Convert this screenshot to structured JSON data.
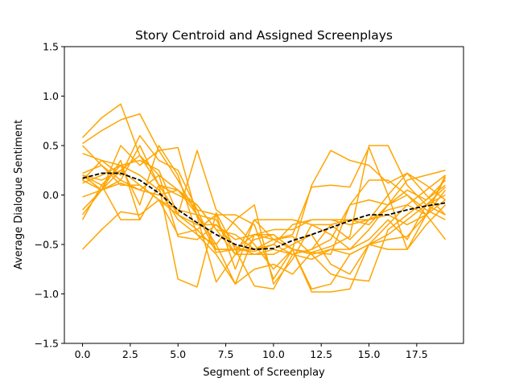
{
  "chart_data": {
    "type": "line",
    "title": "Story Centroid and Assigned Screenplays",
    "xlabel": "Segment of Screenplay",
    "ylabel": "Average Dialogue Sentiment",
    "xlim": [
      -0.95,
      19.95
    ],
    "ylim": [
      -1.5,
      1.5
    ],
    "xticks": [
      0.0,
      2.5,
      5.0,
      7.5,
      10.0,
      12.5,
      15.0,
      17.5
    ],
    "xtick_labels": [
      "0.0",
      "2.5",
      "5.0",
      "7.5",
      "10.0",
      "12.5",
      "15.0",
      "17.5"
    ],
    "yticks": [
      -1.5,
      -1.0,
      -0.5,
      0.0,
      0.5,
      1.0,
      1.5
    ],
    "ytick_labels": [
      "−1.5",
      "−1.0",
      "−0.5",
      "0.0",
      "0.5",
      "1.0",
      "1.5"
    ],
    "grid": false,
    "legend": "none",
    "x": [
      0,
      1,
      2,
      3,
      4,
      5,
      6,
      7,
      8,
      9,
      10,
      11,
      12,
      13,
      14,
      15,
      16,
      17,
      18,
      19
    ],
    "series_color": "#ffa500",
    "centroid_color": "#000000",
    "series": [
      {
        "values": [
          0.58,
          0.78,
          0.92,
          0.4,
          0.2,
          0.05,
          -0.1,
          -0.35,
          -0.6,
          -0.45,
          -0.4,
          -0.55,
          -0.95,
          -0.9,
          -0.6,
          -0.5,
          -0.3,
          -0.1,
          0.05,
          0.2
        ]
      },
      {
        "values": [
          0.52,
          0.65,
          0.76,
          0.82,
          0.45,
          0.15,
          -0.2,
          -0.5,
          -0.9,
          -0.75,
          -0.7,
          -0.8,
          -0.58,
          -0.52,
          -0.42,
          0.5,
          0.5,
          0.1,
          -0.1,
          -0.2
        ]
      },
      {
        "values": [
          0.42,
          0.35,
          0.2,
          0.6,
          0.35,
          0.25,
          -0.15,
          -0.55,
          -0.55,
          -0.4,
          -0.4,
          -0.55,
          -0.6,
          -0.8,
          -0.85,
          -0.87,
          -0.35,
          -0.2,
          -0.05,
          0.1
        ]
      },
      {
        "values": [
          0.2,
          0.05,
          0.5,
          0.3,
          0.45,
          0.48,
          -0.22,
          -0.88,
          -0.6,
          -0.6,
          -0.55,
          -0.6,
          -0.55,
          -0.45,
          -0.1,
          0.15,
          0.15,
          0.0,
          -0.2,
          0.05
        ]
      },
      {
        "values": [
          0.2,
          0.15,
          0.25,
          0.4,
          0.1,
          -0.2,
          0.45,
          -0.15,
          -0.3,
          -0.5,
          -0.75,
          -0.55,
          0.1,
          0.45,
          0.35,
          0.3,
          0.12,
          0.22,
          0.0,
          -0.2
        ]
      },
      {
        "values": [
          0.15,
          0.35,
          0.3,
          -0.1,
          0.5,
          0.2,
          -0.4,
          -0.5,
          -0.25,
          -0.1,
          -0.9,
          -0.65,
          -0.3,
          -0.3,
          -0.45,
          -0.25,
          -0.15,
          -0.1,
          -0.2,
          -0.45
        ]
      },
      {
        "values": [
          -0.25,
          0.1,
          0.3,
          0.35,
          0.25,
          -0.2,
          -0.35,
          -0.2,
          -0.2,
          -0.3,
          -0.85,
          -0.55,
          -0.98,
          -0.98,
          -0.95,
          -0.5,
          -0.4,
          -0.25,
          -0.1,
          0.0
        ]
      },
      {
        "values": [
          -0.15,
          0.05,
          0.25,
          0.1,
          -0.05,
          -0.4,
          -0.35,
          -0.55,
          -0.55,
          -0.92,
          -0.95,
          -0.6,
          -0.55,
          -0.3,
          -0.25,
          -0.3,
          -0.1,
          0.0,
          -0.15,
          -0.25
        ]
      },
      {
        "values": [
          0.22,
          0.3,
          0.15,
          0.05,
          0.2,
          -0.42,
          -0.45,
          -0.3,
          -0.52,
          -0.6,
          -0.6,
          -0.5,
          -0.4,
          -0.7,
          -0.8,
          -0.5,
          -0.55,
          -0.55,
          -0.3,
          -0.1
        ]
      },
      {
        "values": [
          -0.2,
          0.05,
          0.15,
          0.5,
          0.1,
          -0.85,
          -0.93,
          -0.18,
          -0.55,
          -0.55,
          -0.45,
          -0.42,
          -0.6,
          -0.55,
          -0.6,
          -0.5,
          -0.45,
          -0.42,
          -0.2,
          0.2
        ]
      },
      {
        "values": [
          0.15,
          0.05,
          0.35,
          -0.25,
          0.1,
          0.05,
          -0.2,
          -0.58,
          -0.55,
          -0.57,
          -0.5,
          -0.6,
          -0.65,
          -0.55,
          -0.55,
          -0.35,
          -0.1,
          0.15,
          0.2,
          0.25
        ]
      },
      {
        "values": [
          -0.55,
          -0.35,
          -0.17,
          -0.2,
          -0.05,
          -0.2,
          -0.3,
          -0.3,
          -0.45,
          -0.4,
          -0.35,
          -0.35,
          -0.25,
          -0.25,
          -0.3,
          -0.25,
          -0.2,
          -0.3,
          -0.2,
          -0.05
        ]
      },
      {
        "values": [
          -0.02,
          0.05,
          0.12,
          0.05,
          0.0,
          0.05,
          -0.15,
          -0.2,
          -0.75,
          -0.25,
          -0.25,
          -0.25,
          -0.3,
          -0.4,
          -0.55,
          -0.45,
          -0.25,
          -0.45,
          -0.1,
          0.08
        ]
      },
      {
        "values": [
          0.5,
          0.3,
          0.1,
          0.1,
          -0.05,
          -0.15,
          -0.2,
          -0.25,
          -0.6,
          -0.25,
          -0.45,
          -0.4,
          0.08,
          0.1,
          0.08,
          0.48,
          0.0,
          0.22,
          0.1,
          -0.05
        ]
      },
      {
        "values": [
          0.12,
          0.2,
          0.3,
          0.2,
          0.05,
          -0.25,
          -0.4,
          -0.6,
          -0.9,
          -0.4,
          -0.45,
          -0.55,
          -0.58,
          -0.6,
          -0.1,
          -0.05,
          -0.1,
          0.05,
          -0.05,
          0.15
        ]
      },
      {
        "values": [
          0.2,
          0.1,
          -0.25,
          -0.25,
          0.1,
          0.0,
          -0.1,
          -0.35,
          -0.4,
          -0.55,
          -0.5,
          -0.3,
          -0.25,
          -0.25,
          -0.25,
          -0.25,
          0.0,
          -0.55,
          -0.2,
          0.18
        ]
      }
    ],
    "centroid": {
      "values": [
        0.17,
        0.22,
        0.22,
        0.15,
        0.02,
        -0.15,
        -0.28,
        -0.4,
        -0.5,
        -0.55,
        -0.54,
        -0.46,
        -0.4,
        -0.33,
        -0.26,
        -0.2,
        -0.2,
        -0.15,
        -0.11,
        -0.08
      ]
    }
  }
}
